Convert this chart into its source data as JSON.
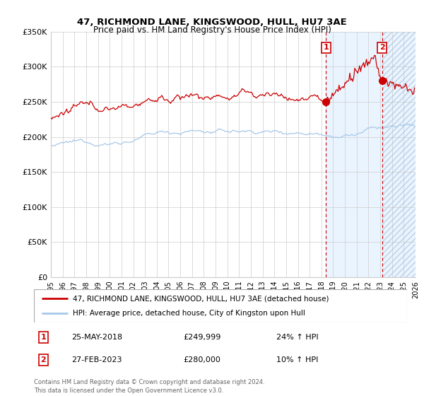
{
  "title": "47, RICHMOND LANE, KINGSWOOD, HULL, HU7 3AE",
  "subtitle": "Price paid vs. HM Land Registry's House Price Index (HPI)",
  "legend_line1": "47, RICHMOND LANE, KINGSWOOD, HULL, HU7 3AE (detached house)",
  "legend_line2": "HPI: Average price, detached house, City of Kingston upon Hull",
  "annotation1_date": "25-MAY-2018",
  "annotation1_price": "£249,999",
  "annotation1_hpi": "24% ↑ HPI",
  "annotation1_year": 2018.38,
  "annotation1_value": 249999,
  "annotation2_date": "27-FEB-2023",
  "annotation2_price": "£280,000",
  "annotation2_hpi": "10% ↑ HPI",
  "annotation2_year": 2023.15,
  "annotation2_value": 280000,
  "ylabel_ticks": [
    "£0",
    "£50K",
    "£100K",
    "£150K",
    "£200K",
    "£250K",
    "£300K",
    "£350K"
  ],
  "ytick_vals": [
    0,
    50000,
    100000,
    150000,
    200000,
    250000,
    300000,
    350000
  ],
  "xmin": 1995,
  "xmax": 2026,
  "ymin": 0,
  "ymax": 350000,
  "hpi_color": "#a8c8e8",
  "price_color": "#cc0000",
  "grid_color": "#cccccc",
  "bg_color": "#ffffff",
  "shade_color": "#ddeeff",
  "footnote": "Contains HM Land Registry data © Crown copyright and database right 2024.\nThis data is licensed under the Open Government Licence v3.0."
}
